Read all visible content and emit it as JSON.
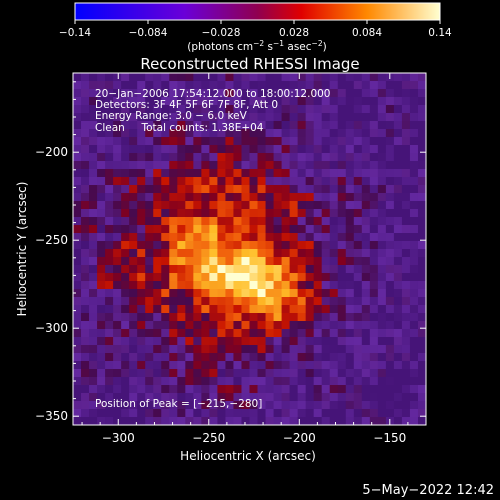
{
  "chart_data": {
    "type": "heatmap",
    "title": "Reconstructed RHESSI Image",
    "xlabel": "Heliocentric X (arcsec)",
    "ylabel": "Heliocentric Y (arcsec)",
    "xlim": [
      -325,
      -130
    ],
    "ylim": [
      -355,
      -155
    ],
    "x_ticks": [
      -300,
      -250,
      -200,
      -150
    ],
    "y_ticks": [
      -200,
      -250,
      -300,
      -350
    ],
    "x_tick_labels": [
      "−300",
      "−250",
      "−200",
      "−150"
    ],
    "y_tick_labels": [
      "−200",
      "−250",
      "−300",
      "−350"
    ],
    "colorbar": {
      "range": [
        -0.14,
        0.14
      ],
      "ticks": [
        -0.14,
        -0.084,
        -0.028,
        0.028,
        0.084,
        0.14
      ],
      "tick_labels": [
        "−0.14",
        "−0.084",
        "−0.028",
        "0.028",
        "0.084",
        "0.14"
      ],
      "unit_label_prefix": "(photons cm",
      "unit_label_suffix": " asec",
      "unit_label_close": ")",
      "unit_sup_cm": "−2",
      "unit_s": " s",
      "unit_sup_s": "−1",
      "unit_sup_asec": "−2"
    },
    "peak": {
      "x": -215,
      "y": -280,
      "value": 0.14
    },
    "annotations": [
      "20−Jan−2006 17:54:12.000 to 18:00:12.000",
      "Detectors: 3F 4F 5F 6F 7F 8F, Att 0",
      "Energy Range: 3.0 − 6.0 keV",
      "Clean     Total counts: 1.38E+04"
    ],
    "peak_label": "Position of Peak = [−215,−280]"
  },
  "footer": {
    "timestamp": "5−May−2022 12:42"
  }
}
